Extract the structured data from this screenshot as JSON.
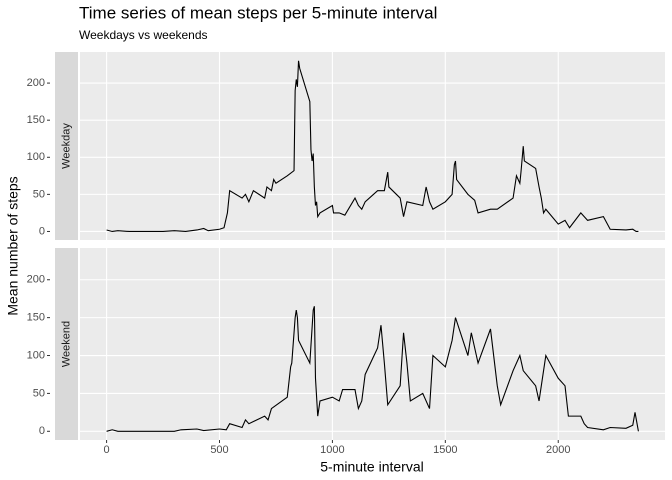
{
  "chart_data": {
    "type": "line",
    "title": "Time series of mean steps per 5-minute interval",
    "subtitle": "Weekdays vs weekends",
    "xlabel": "5-minute interval",
    "ylabel": "Mean number of steps",
    "xlim": [
      -117.75,
      2472.75
    ],
    "xticks": [
      0,
      500,
      1000,
      1500,
      2000
    ],
    "ylim": [
      -11.5,
      241.9
    ],
    "yticks": [
      0,
      50,
      100,
      150,
      200
    ],
    "grid": true,
    "color": "#000000",
    "panels": [
      {
        "name": "Weekday",
        "x": [
          0,
          25,
          50,
          100,
          150,
          200,
          250,
          300,
          350,
          400,
          430,
          450,
          500,
          520,
          535,
          545,
          600,
          615,
          630,
          650,
          700,
          710,
          730,
          740,
          750,
          800,
          830,
          835,
          840,
          845,
          850,
          855,
          900,
          905,
          910,
          915,
          920,
          925,
          930,
          935,
          945,
          1000,
          1005,
          1030,
          1055,
          1100,
          1115,
          1130,
          1145,
          1200,
          1230,
          1245,
          1250,
          1300,
          1315,
          1330,
          1400,
          1415,
          1430,
          1445,
          1500,
          1530,
          1540,
          1545,
          1550,
          1600,
          1630,
          1645,
          1700,
          1730,
          1800,
          1815,
          1830,
          1835,
          1845,
          1850,
          1900,
          1915,
          1925,
          1935,
          1945,
          2000,
          2030,
          2050,
          2100,
          2130,
          2200,
          2230,
          2300,
          2330,
          2345,
          2355
        ],
        "values": [
          2,
          0,
          1,
          0,
          0,
          0,
          0,
          1,
          0,
          2,
          4,
          1,
          3,
          5,
          25,
          55,
          45,
          50,
          40,
          55,
          45,
          60,
          55,
          70,
          65,
          75,
          82,
          190,
          205,
          195,
          230,
          220,
          175,
          110,
          95,
          105,
          60,
          35,
          40,
          20,
          25,
          35,
          25,
          25,
          22,
          45,
          35,
          30,
          40,
          55,
          55,
          80,
          60,
          45,
          20,
          40,
          35,
          60,
          40,
          30,
          40,
          50,
          90,
          95,
          70,
          50,
          42,
          25,
          30,
          30,
          45,
          75,
          65,
          80,
          115,
          95,
          85,
          60,
          45,
          25,
          30,
          10,
          15,
          5,
          25,
          15,
          20,
          3,
          2,
          3,
          0,
          0
        ]
      },
      {
        "name": "Weekend",
        "x": [
          0,
          25,
          50,
          100,
          200,
          300,
          330,
          400,
          430,
          500,
          530,
          545,
          600,
          615,
          630,
          700,
          715,
          730,
          800,
          815,
          820,
          830,
          835,
          840,
          845,
          850,
          900,
          915,
          920,
          925,
          935,
          945,
          1000,
          1030,
          1045,
          1100,
          1115,
          1130,
          1145,
          1200,
          1215,
          1230,
          1245,
          1300,
          1315,
          1330,
          1345,
          1400,
          1430,
          1445,
          1500,
          1530,
          1545,
          1600,
          1615,
          1645,
          1700,
          1730,
          1745,
          1800,
          1830,
          1845,
          1900,
          1915,
          1930,
          1945,
          2000,
          2030,
          2045,
          2100,
          2115,
          2130,
          2200,
          2230,
          2300,
          2330,
          2340,
          2355
        ],
        "values": [
          0,
          2,
          0,
          0,
          0,
          0,
          2,
          3,
          1,
          3,
          2,
          10,
          5,
          15,
          10,
          20,
          15,
          30,
          45,
          85,
          90,
          130,
          150,
          160,
          150,
          120,
          90,
          160,
          165,
          70,
          20,
          40,
          45,
          40,
          55,
          55,
          30,
          40,
          75,
          110,
          140,
          90,
          35,
          60,
          130,
          90,
          40,
          50,
          30,
          100,
          85,
          120,
          150,
          100,
          130,
          90,
          135,
          60,
          35,
          80,
          100,
          80,
          60,
          40,
          70,
          100,
          70,
          60,
          20,
          20,
          10,
          5,
          2,
          5,
          4,
          8,
          25,
          0
        ]
      }
    ]
  }
}
